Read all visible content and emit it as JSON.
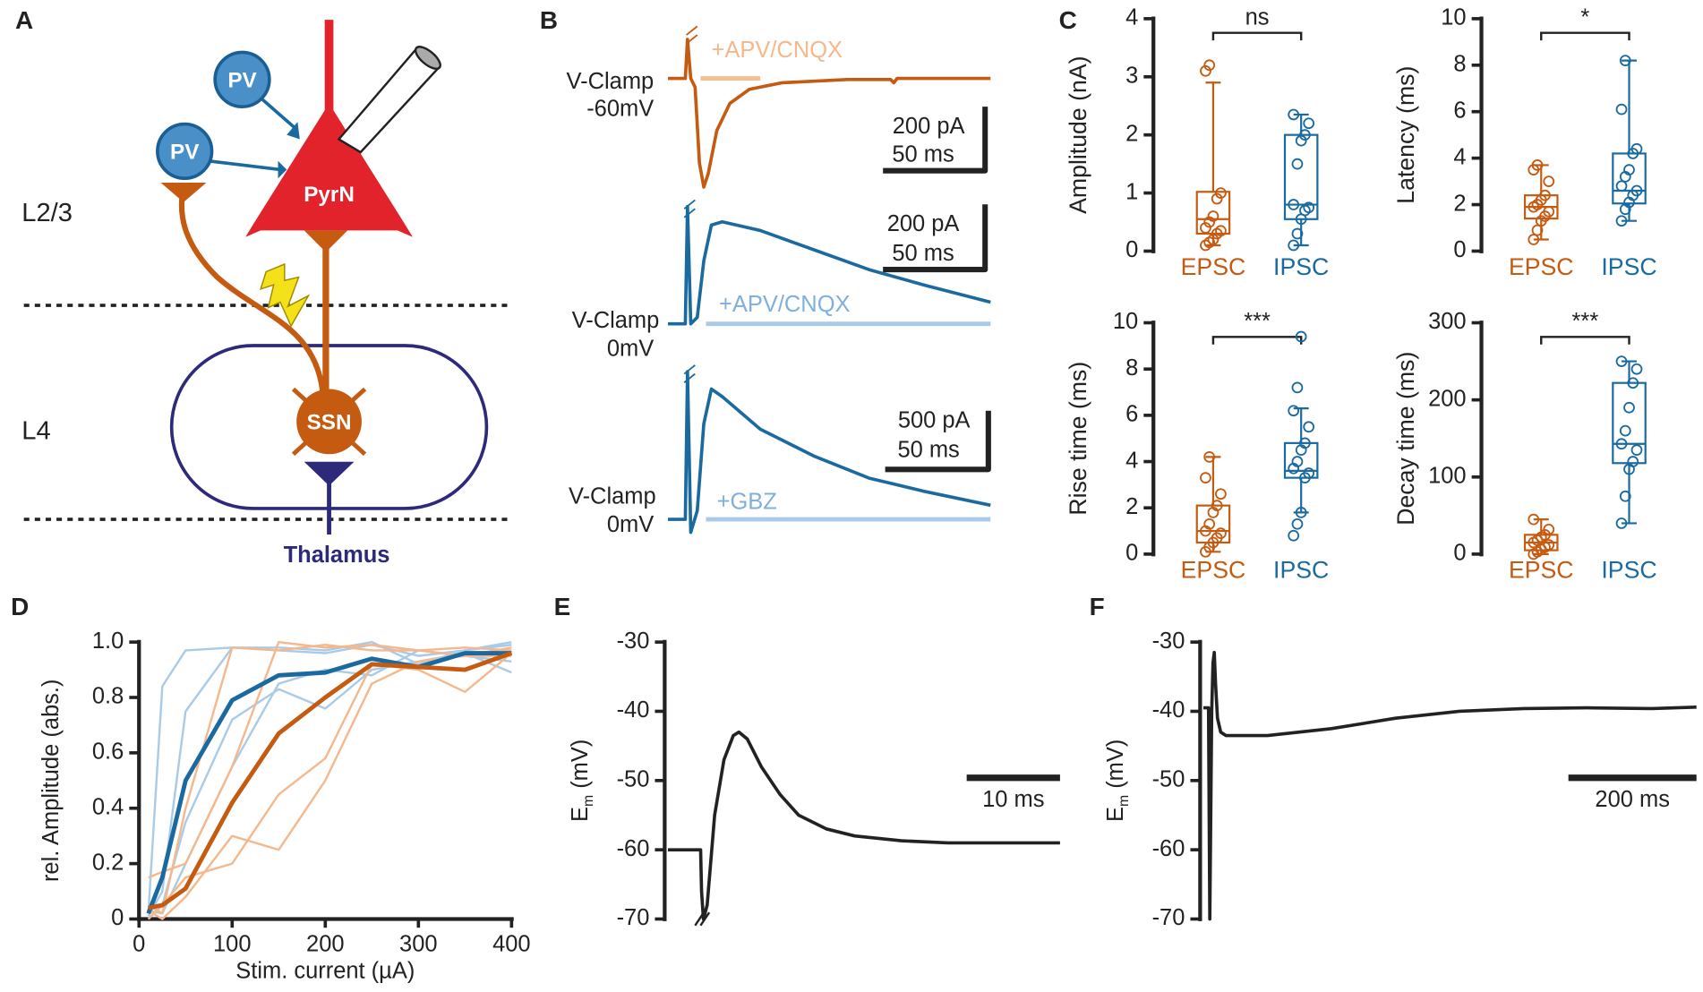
{
  "panel_labels": [
    "A",
    "B",
    "C",
    "D",
    "E",
    "F"
  ],
  "diagram": {
    "pv_1": "PV",
    "pv_2": "PV",
    "pyrn": "PyrN",
    "ssn": "SSN",
    "layer_23": "L2/3",
    "layer_4": "L4",
    "thalamus": "Thalamus"
  },
  "traces_b": {
    "rows": [
      {
        "clamp": "V-Clamp",
        "holding": "-60mV",
        "drug": "+APV/CNQX",
        "scale_current": "200 pA",
        "scale_time": "50 ms"
      },
      {
        "clamp": "V-Clamp",
        "holding": "0mV",
        "drug": "+APV/CNQX",
        "scale_current": "200 pA",
        "scale_time": "50 ms"
      },
      {
        "clamp": "V-Clamp",
        "holding": "0mV",
        "drug": "+GBZ",
        "scale_current": "500 pA",
        "scale_time": "50 ms"
      }
    ]
  },
  "chart_data": [
    {
      "type": "box",
      "ylabel": "Amplitude (nA)",
      "categories": [
        "EPSC",
        "IPSC"
      ],
      "colors": [
        "#c55a11",
        "#1a6aa0"
      ],
      "ylim": [
        0,
        4
      ],
      "yticks": [
        0,
        1,
        2,
        3,
        4
      ],
      "significance": "ns",
      "boxes": [
        {
          "whisker_low": 0.1,
          "q1": 0.3,
          "median": 0.55,
          "q3": 1.02,
          "whisker_high": 2.9,
          "points": [
            0.1,
            0.15,
            0.2,
            0.3,
            0.35,
            0.4,
            0.5,
            0.6,
            0.9,
            1.0,
            3.1,
            3.2
          ]
        },
        {
          "whisker_low": 0.1,
          "q1": 0.55,
          "median": 0.8,
          "q3": 2.0,
          "whisker_high": 2.35,
          "points": [
            0.1,
            0.3,
            0.55,
            0.7,
            0.75,
            0.8,
            1.5,
            1.9,
            2.0,
            2.2,
            2.35
          ]
        }
      ]
    },
    {
      "type": "box",
      "ylabel": "Latency (ms)",
      "categories": [
        "EPSC",
        "IPSC"
      ],
      "colors": [
        "#c55a11",
        "#1a6aa0"
      ],
      "ylim": [
        0,
        10
      ],
      "yticks": [
        0,
        2,
        4,
        6,
        8,
        10
      ],
      "significance": "*",
      "boxes": [
        {
          "whisker_low": 0.5,
          "q1": 1.4,
          "median": 1.9,
          "q3": 2.4,
          "whisker_high": 3.7,
          "points": [
            0.5,
            0.9,
            1.3,
            1.5,
            1.7,
            1.9,
            2.0,
            2.2,
            2.4,
            3.0,
            3.5,
            3.7
          ]
        },
        {
          "whisker_low": 1.3,
          "q1": 2.05,
          "median": 2.6,
          "q3": 4.2,
          "whisker_high": 8.2,
          "points": [
            1.3,
            1.8,
            2.1,
            2.4,
            2.6,
            2.8,
            3.2,
            3.5,
            4.2,
            4.4,
            6.1,
            8.2
          ]
        }
      ]
    },
    {
      "type": "box",
      "ylabel": "Rise time (ms)",
      "categories": [
        "EPSC",
        "IPSC"
      ],
      "colors": [
        "#c55a11",
        "#1a6aa0"
      ],
      "ylim": [
        0,
        10
      ],
      "yticks": [
        0,
        2,
        4,
        6,
        8,
        10
      ],
      "significance": "***",
      "boxes": [
        {
          "whisker_low": 0.1,
          "q1": 0.5,
          "median": 1.0,
          "q3": 2.1,
          "whisker_high": 4.2,
          "points": [
            0.1,
            0.3,
            0.5,
            0.7,
            0.9,
            1.0,
            1.3,
            1.8,
            2.1,
            2.6,
            3.3,
            4.2
          ]
        },
        {
          "whisker_low": 1.8,
          "q1": 3.3,
          "median": 3.6,
          "q3": 4.8,
          "whisker_high": 6.3,
          "points": [
            0.8,
            1.3,
            1.8,
            3.3,
            3.5,
            3.7,
            4.0,
            4.5,
            4.8,
            5.5,
            6.2,
            7.2,
            9.4
          ]
        }
      ]
    },
    {
      "type": "box",
      "ylabel": "Decay time (ms)",
      "categories": [
        "EPSC",
        "IPSC"
      ],
      "colors": [
        "#c55a11",
        "#1a6aa0"
      ],
      "ylim": [
        0,
        300
      ],
      "yticks": [
        0,
        100,
        200,
        300
      ],
      "significance": "***",
      "boxes": [
        {
          "whisker_low": 0,
          "q1": 5,
          "median": 15,
          "q3": 25,
          "whisker_high": 45,
          "points": [
            0,
            3,
            6,
            9,
            12,
            15,
            18,
            22,
            25,
            32,
            45
          ]
        },
        {
          "whisker_low": 40,
          "q1": 118,
          "median": 143,
          "q3": 222,
          "whisker_high": 250,
          "points": [
            40,
            75,
            110,
            120,
            135,
            143,
            160,
            190,
            222,
            240,
            250
          ]
        }
      ]
    },
    {
      "type": "line",
      "xlabel": "Stim. current (µA)",
      "ylabel": "rel. Amplitude (abs.)",
      "xlim": [
        0,
        400
      ],
      "xticks": [
        0,
        100,
        200,
        300,
        400
      ],
      "ylim": [
        0,
        1
      ],
      "yticks": [
        0,
        0.2,
        0.4,
        0.6,
        0.8,
        {
          "value": 1,
          "label": "1.0"
        }
      ],
      "series": [
        {
          "color": "#a9cbe8",
          "linewidth": 2,
          "x": [
            10,
            25,
            50,
            100,
            150,
            200,
            250,
            300,
            350,
            400
          ],
          "values": [
            0.02,
            0.84,
            0.97,
            0.98,
            0.98,
            0.97,
            1.0,
            0.92,
            0.97,
            0.99
          ]
        },
        {
          "color": "#a9cbe8",
          "linewidth": 2,
          "x": [
            10,
            25,
            50,
            100,
            150,
            200,
            250,
            300,
            350,
            400
          ],
          "values": [
            0.01,
            0.1,
            0.75,
            0.98,
            0.97,
            0.96,
            0.99,
            0.95,
            0.97,
            1.0
          ]
        },
        {
          "color": "#a9cbe8",
          "linewidth": 2,
          "x": [
            10,
            25,
            50,
            100,
            150,
            200,
            250,
            300,
            350,
            400
          ],
          "values": [
            0.0,
            0.05,
            0.35,
            0.72,
            0.83,
            0.76,
            0.9,
            0.93,
            0.96,
            0.89
          ]
        },
        {
          "color": "#a9cbe8",
          "linewidth": 2,
          "x": [
            10,
            25,
            50,
            100,
            150,
            200,
            250,
            300,
            350,
            400
          ],
          "values": [
            0.03,
            0.02,
            0.2,
            0.55,
            0.85,
            0.9,
            0.88,
            0.97,
            0.95,
            0.93
          ]
        },
        {
          "color": "#f5b88d",
          "linewidth": 2,
          "x": [
            10,
            25,
            50,
            100,
            150,
            200,
            250,
            300,
            350,
            400
          ],
          "values": [
            0.15,
            0.17,
            0.2,
            0.55,
            1.0,
            0.98,
            0.99,
            0.97,
            0.95,
            0.98
          ]
        },
        {
          "color": "#f5b88d",
          "linewidth": 2,
          "x": [
            10,
            25,
            50,
            100,
            150,
            200,
            250,
            300,
            350,
            400
          ],
          "values": [
            0.05,
            0.02,
            0.4,
            0.98,
            0.97,
            0.99,
            0.97,
            0.97,
            0.98,
            0.97
          ]
        },
        {
          "color": "#f5b88d",
          "linewidth": 2,
          "x": [
            10,
            25,
            50,
            100,
            150,
            200,
            250,
            300,
            350,
            400
          ],
          "values": [
            0.0,
            0.05,
            0.15,
            0.2,
            0.45,
            0.58,
            0.92,
            0.9,
            0.82,
            0.96
          ]
        },
        {
          "color": "#f5b88d",
          "linewidth": 2,
          "x": [
            10,
            25,
            50,
            100,
            150,
            200,
            250,
            300,
            350,
            400
          ],
          "values": [
            0.03,
            0.0,
            0.08,
            0.3,
            0.25,
            0.5,
            0.85,
            0.93,
            0.95,
            0.95
          ]
        },
        {
          "color": "#1a6aa0",
          "linewidth": 4,
          "x": [
            10,
            25,
            50,
            100,
            150,
            200,
            250,
            300,
            350,
            400
          ],
          "values": [
            0.02,
            0.15,
            0.5,
            0.79,
            0.88,
            0.89,
            0.94,
            0.91,
            0.96,
            0.96
          ]
        },
        {
          "color": "#c55a11",
          "linewidth": 4,
          "x": [
            10,
            25,
            50,
            100,
            150,
            200,
            250,
            300,
            350,
            400
          ],
          "values": [
            0.04,
            0.05,
            0.11,
            0.42,
            0.67,
            0.8,
            0.92,
            0.91,
            0.9,
            0.96
          ]
        }
      ]
    },
    {
      "type": "trace",
      "ylabel_parts": [
        "E",
        "m",
        " (mV)"
      ],
      "xlim": [
        0,
        42
      ],
      "ylim": [
        -70,
        -30
      ],
      "yticks": [
        -30,
        -40,
        -50,
        -60,
        -70
      ],
      "scalebar": {
        "value": 10,
        "label": "10 ms"
      },
      "series": [
        {
          "color": "#222222",
          "linewidth": 3,
          "x": [
            0,
            3.5,
            3.6,
            3.8,
            4.2,
            5,
            6,
            7,
            7.6,
            8.5,
            10,
            12,
            14,
            17,
            20,
            25,
            30,
            35,
            42
          ],
          "values": [
            -60,
            -60,
            -66,
            -70,
            -68,
            -55,
            -47,
            -43.5,
            -43,
            -44,
            -48,
            -52,
            -55,
            -57,
            -58,
            -58.7,
            -59,
            -59,
            -59
          ]
        }
      ]
    },
    {
      "type": "trace",
      "ylabel_parts": [
        "E",
        "m",
        " (mV)"
      ],
      "xlim": [
        0,
        770
      ],
      "ylim": [
        -70,
        -30
      ],
      "yticks": [
        -30,
        -40,
        -50,
        -60,
        -70
      ],
      "scalebar": {
        "value": 200,
        "label": "200 ms"
      },
      "series": [
        {
          "color": "#222222",
          "linewidth": 3,
          "x": [
            0,
            8,
            9,
            10,
            11,
            13,
            15,
            17,
            19,
            22,
            27,
            35,
            50,
            100,
            200,
            300,
            400,
            500,
            600,
            700,
            770
          ],
          "values": [
            -39.5,
            -39.5,
            -55,
            -70,
            -60,
            -40,
            -33,
            -31.5,
            -36,
            -41,
            -43,
            -43.5,
            -43.5,
            -43.5,
            -42.5,
            -41,
            -40,
            -39.6,
            -39.5,
            -39.6,
            -39.4
          ]
        }
      ]
    }
  ]
}
